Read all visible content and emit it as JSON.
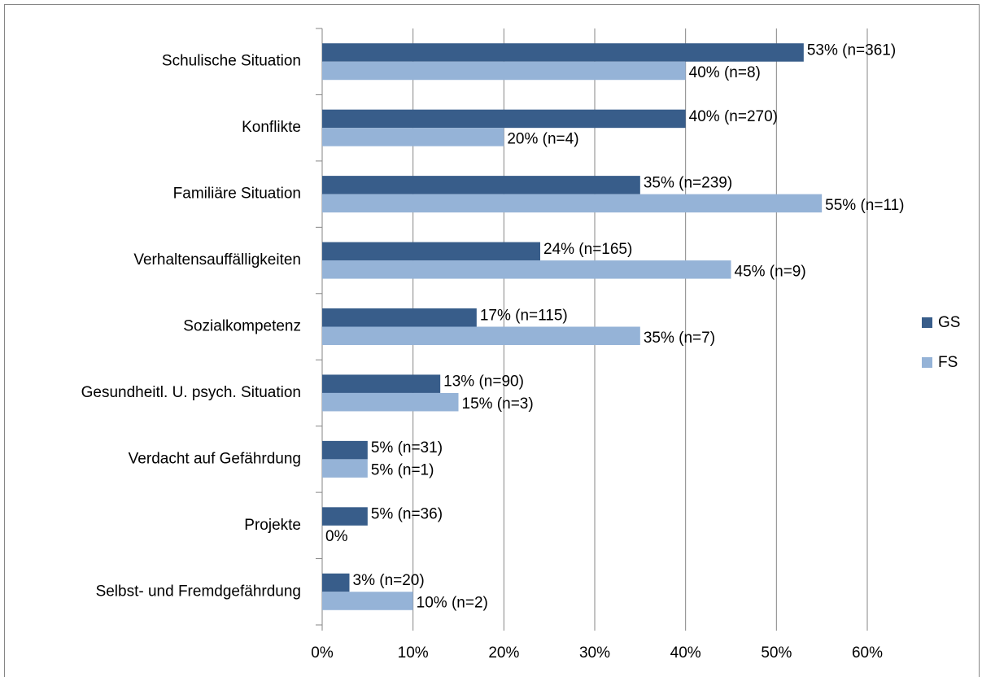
{
  "chart_data": {
    "type": "hbar",
    "categories": [
      "Schulische Situation",
      "Konflikte",
      "Familiäre Situation",
      "Verhaltensauffälligkeiten",
      "Sozialkompetenz",
      "Gesundheitl. U. psych. Situation",
      "Verdacht auf Gefährdung",
      "Projekte",
      "Selbst- und Fremdgefährdung"
    ],
    "series": [
      {
        "name": "GS",
        "color": "#385d8a",
        "values": [
          53,
          40,
          35,
          24,
          17,
          13,
          5,
          5,
          3
        ],
        "value_labels": [
          "53% (n=361)",
          "40% (n=270)",
          "35% (n=239)",
          "24% (n=165)",
          "17% (n=115)",
          "13% (n=90)",
          "5% (n=31)",
          "5% (n=36)",
          "3% (n=20)"
        ]
      },
      {
        "name": "FS",
        "color": "#95b3d7",
        "values": [
          40,
          20,
          55,
          45,
          35,
          15,
          5,
          0,
          10
        ],
        "value_labels": [
          "40% (n=8)",
          "20% (n=4)",
          "55% (n=11)",
          "45% (n=9)",
          "35% (n=7)",
          "15% (n=3)",
          "5% (n=1)",
          "0%",
          "10% (n=2)"
        ]
      }
    ],
    "xlim": [
      0,
      60
    ],
    "xticks": [
      {
        "value": 0,
        "label": "0%"
      },
      {
        "value": 10,
        "label": "10%"
      },
      {
        "value": 20,
        "label": "20%"
      },
      {
        "value": 30,
        "label": "30%"
      },
      {
        "value": 40,
        "label": "40%"
      },
      {
        "value": 50,
        "label": "50%"
      },
      {
        "value": 60,
        "label": "60%"
      }
    ],
    "grid": true,
    "legend": "right"
  }
}
